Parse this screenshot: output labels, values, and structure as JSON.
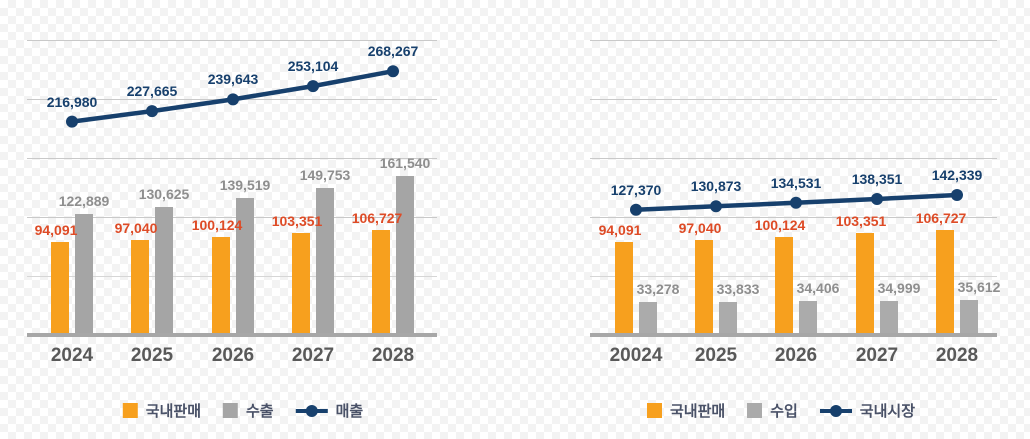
{
  "colors": {
    "orange_bar": "#F7A01E",
    "gray_bar_left": "#A5A5A5",
    "gray_bar_right": "#ABABAB",
    "navy_line": "#17406D",
    "orange_label": "#DE4B26",
    "gray_label": "#8E8E8E",
    "year_label": "#595959",
    "legend_text": "#4A5268",
    "gridline": "#C9C9C9",
    "axis_line": "#A7A7A7",
    "checker_light": "#FFFFFF",
    "checker_dark": "#F3F3F3"
  },
  "chart_data": [
    {
      "type": "bar",
      "subtype": "combo-bar-line",
      "title": "",
      "categories": [
        "2024",
        "2025",
        "2026",
        "2027",
        "2028"
      ],
      "bar_series": [
        {
          "name": "국내판매",
          "color": "#F7A01E",
          "label_color": "#DE4B26",
          "values": [
            94091,
            97040,
            100124,
            103351,
            106727
          ]
        },
        {
          "name": "수출",
          "color": "#A5A5A5",
          "label_color": "#8E8E8E",
          "values": [
            122889,
            130625,
            139519,
            149753,
            161540
          ]
        }
      ],
      "line_series": {
        "name": "매출",
        "color": "#17406D",
        "values": [
          216980,
          227665,
          239643,
          253104,
          268267
        ]
      },
      "ylim": [
        0,
        300000
      ],
      "grid_interval": 60000,
      "grid_on": true,
      "legend_position": "bottom",
      "legend": [
        "국내판매",
        "수출",
        "매출"
      ]
    },
    {
      "type": "bar",
      "subtype": "combo-bar-line",
      "title": "",
      "categories": [
        "20024",
        "2025",
        "2026",
        "2027",
        "2028"
      ],
      "bar_series": [
        {
          "name": "국내판매",
          "color": "#F7A01E",
          "label_color": "#DE4B26",
          "values": [
            94091,
            97040,
            100124,
            103351,
            106727
          ]
        },
        {
          "name": "수입",
          "color": "#ABABAB",
          "label_color": "#8E8E8E",
          "values": [
            33278,
            33833,
            34406,
            34999,
            35612
          ]
        }
      ],
      "line_series": {
        "name": "국내시장",
        "color": "#17406D",
        "values": [
          127370,
          130873,
          134531,
          138351,
          142339
        ]
      },
      "ylim": [
        0,
        300000
      ],
      "grid_interval": 60000,
      "grid_on": true,
      "legend_position": "bottom",
      "legend": [
        "국내판매",
        "수입",
        "국내시장"
      ]
    }
  ]
}
